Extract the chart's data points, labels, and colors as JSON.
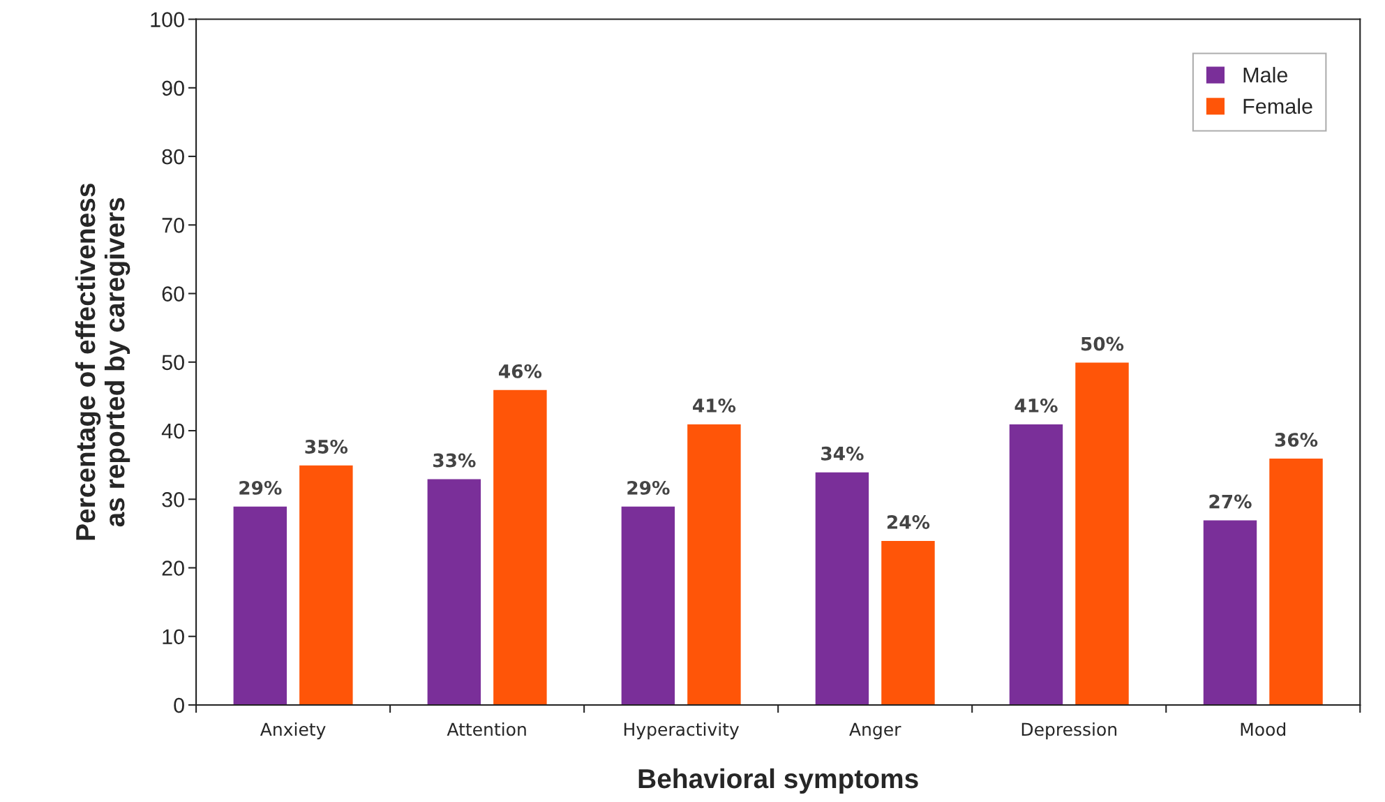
{
  "chart_data": {
    "type": "bar",
    "xlabel": "Behavioral symptoms",
    "ylabel": "Percentage of effectiveness\nas reported by caregivers",
    "categories": [
      "Anxiety",
      "Attention",
      "Hyperactivity",
      "Anger",
      "Depression",
      "Mood"
    ],
    "series": [
      {
        "name": "Male",
        "color": "#7a2f99",
        "values": [
          29,
          33,
          29,
          34,
          41,
          27
        ],
        "value_labels": [
          "29%",
          "33%",
          "29%",
          "34%",
          "41%",
          "27%"
        ]
      },
      {
        "name": "Female",
        "color": "#ff5508",
        "values": [
          35,
          46,
          41,
          24,
          50,
          36
        ],
        "value_labels": [
          "35%",
          "46%",
          "41%",
          "24%",
          "50%",
          "36%"
        ]
      }
    ],
    "ylim": [
      0,
      100
    ],
    "yticks": [
      0,
      10,
      20,
      30,
      40,
      50,
      60,
      70,
      80,
      90,
      100
    ],
    "grid": false,
    "legend": "top right"
  }
}
